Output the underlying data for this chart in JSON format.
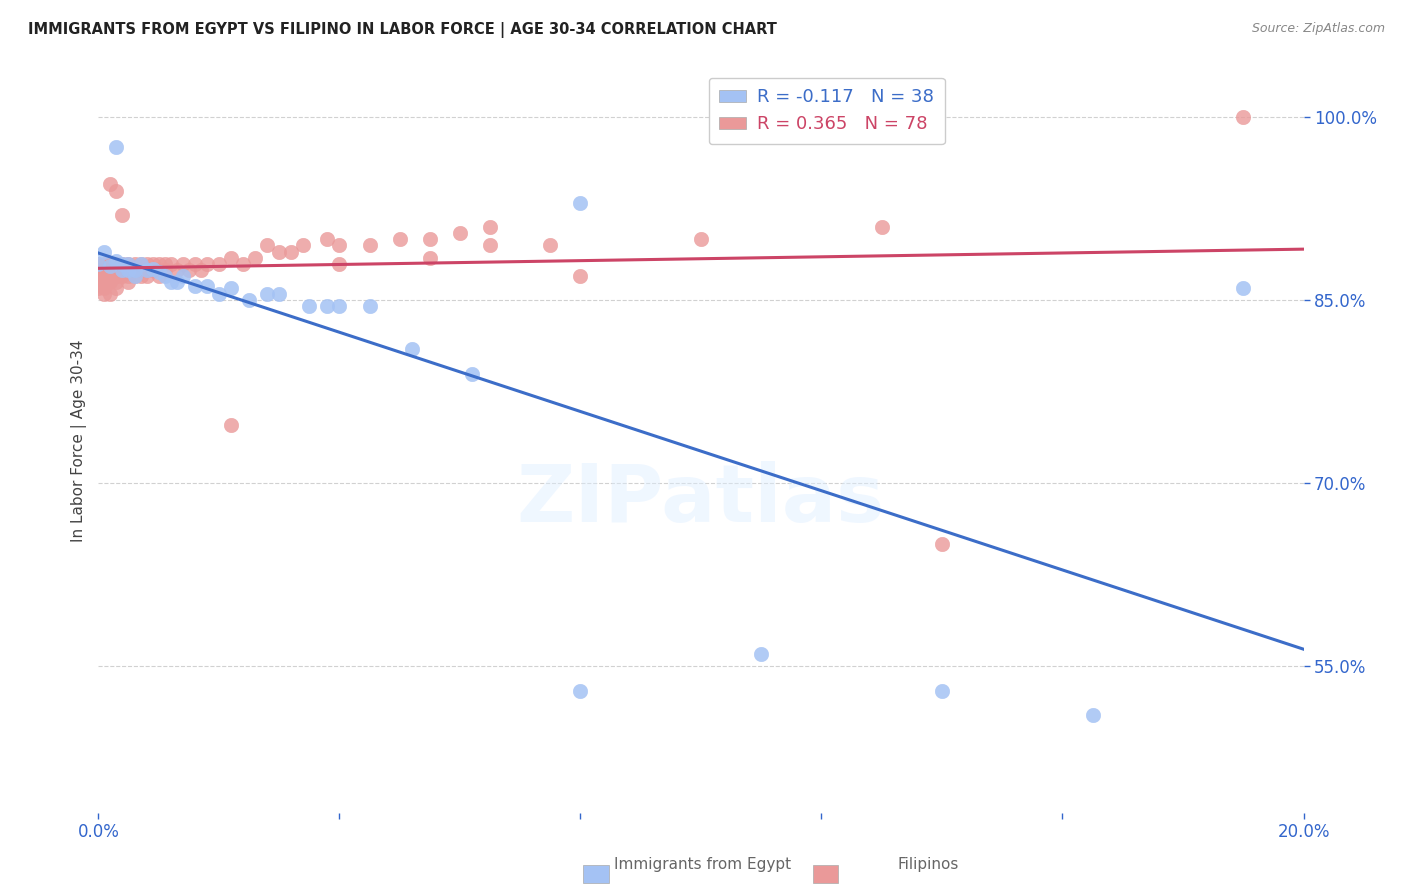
{
  "title": "IMMIGRANTS FROM EGYPT VS FILIPINO IN LABOR FORCE | AGE 30-34 CORRELATION CHART",
  "source": "Source: ZipAtlas.com",
  "ylabel": "In Labor Force | Age 30-34",
  "xlim": [
    0.0,
    0.2
  ],
  "ylim": [
    0.43,
    1.04
  ],
  "xticks": [
    0.0,
    0.04,
    0.08,
    0.12,
    0.16,
    0.2
  ],
  "xtick_labels": [
    "0.0%",
    "",
    "",
    "",
    "",
    "20.0%"
  ],
  "yticks": [
    0.55,
    0.7,
    0.85,
    1.0
  ],
  "ytick_labels": [
    "55.0%",
    "70.0%",
    "85.0%",
    "100.0%"
  ],
  "egypt_r": "-0.117",
  "egypt_n": "38",
  "filipino_r": "0.365",
  "filipino_n": "78",
  "egypt_color": "#a4c2f4",
  "filipino_color": "#ea9999",
  "egypt_line_color": "#3c6dc8",
  "filipino_line_color": "#cc4466",
  "background_color": "#ffffff",
  "grid_color": "#cccccc",
  "title_color": "#222222",
  "legend_egypt_label": "Immigrants from Egypt",
  "legend_filipino_label": "Filipinos",
  "egypt_x": [
    0.0,
    0.001,
    0.002,
    0.003,
    0.003,
    0.004,
    0.004,
    0.005,
    0.005,
    0.006,
    0.006,
    0.007,
    0.008,
    0.009,
    0.01,
    0.011,
    0.012,
    0.013,
    0.014,
    0.016,
    0.018,
    0.02,
    0.022,
    0.025,
    0.028,
    0.03,
    0.035,
    0.038,
    0.04,
    0.045,
    0.052,
    0.062,
    0.08,
    0.11,
    0.14,
    0.165,
    0.19,
    0.08
  ],
  "egypt_y": [
    0.88,
    0.89,
    0.878,
    0.882,
    0.976,
    0.875,
    0.88,
    0.875,
    0.88,
    0.87,
    0.875,
    0.88,
    0.875,
    0.876,
    0.873,
    0.87,
    0.865,
    0.865,
    0.87,
    0.862,
    0.862,
    0.855,
    0.86,
    0.85,
    0.855,
    0.855,
    0.845,
    0.845,
    0.845,
    0.845,
    0.81,
    0.79,
    0.53,
    0.56,
    0.53,
    0.51,
    0.86,
    0.93
  ],
  "filipino_x": [
    0.0,
    0.0,
    0.0,
    0.0,
    0.0,
    0.001,
    0.001,
    0.001,
    0.001,
    0.001,
    0.001,
    0.002,
    0.002,
    0.002,
    0.002,
    0.002,
    0.002,
    0.003,
    0.003,
    0.003,
    0.003,
    0.003,
    0.004,
    0.004,
    0.004,
    0.004,
    0.005,
    0.005,
    0.005,
    0.005,
    0.006,
    0.006,
    0.006,
    0.007,
    0.007,
    0.007,
    0.008,
    0.008,
    0.008,
    0.009,
    0.009,
    0.01,
    0.01,
    0.011,
    0.011,
    0.012,
    0.013,
    0.014,
    0.015,
    0.016,
    0.017,
    0.018,
    0.02,
    0.022,
    0.024,
    0.026,
    0.028,
    0.03,
    0.032,
    0.034,
    0.038,
    0.04,
    0.045,
    0.05,
    0.06,
    0.065,
    0.04,
    0.055,
    0.055,
    0.022,
    0.075,
    0.08,
    0.1,
    0.13,
    0.14,
    0.19,
    0.003,
    0.065
  ],
  "filipino_y": [
    0.88,
    0.875,
    0.87,
    0.865,
    0.86,
    0.88,
    0.875,
    0.87,
    0.865,
    0.86,
    0.855,
    0.88,
    0.875,
    0.87,
    0.865,
    0.945,
    0.855,
    0.88,
    0.875,
    0.87,
    0.865,
    0.86,
    0.88,
    0.875,
    0.87,
    0.92,
    0.88,
    0.875,
    0.87,
    0.865,
    0.88,
    0.875,
    0.87,
    0.88,
    0.875,
    0.87,
    0.88,
    0.875,
    0.87,
    0.88,
    0.875,
    0.88,
    0.87,
    0.88,
    0.875,
    0.88,
    0.875,
    0.88,
    0.875,
    0.88,
    0.875,
    0.88,
    0.88,
    0.885,
    0.88,
    0.885,
    0.895,
    0.89,
    0.89,
    0.895,
    0.9,
    0.895,
    0.895,
    0.9,
    0.905,
    0.895,
    0.88,
    0.885,
    0.9,
    0.748,
    0.895,
    0.87,
    0.9,
    0.91,
    0.65,
    1.0,
    0.94,
    0.91
  ]
}
